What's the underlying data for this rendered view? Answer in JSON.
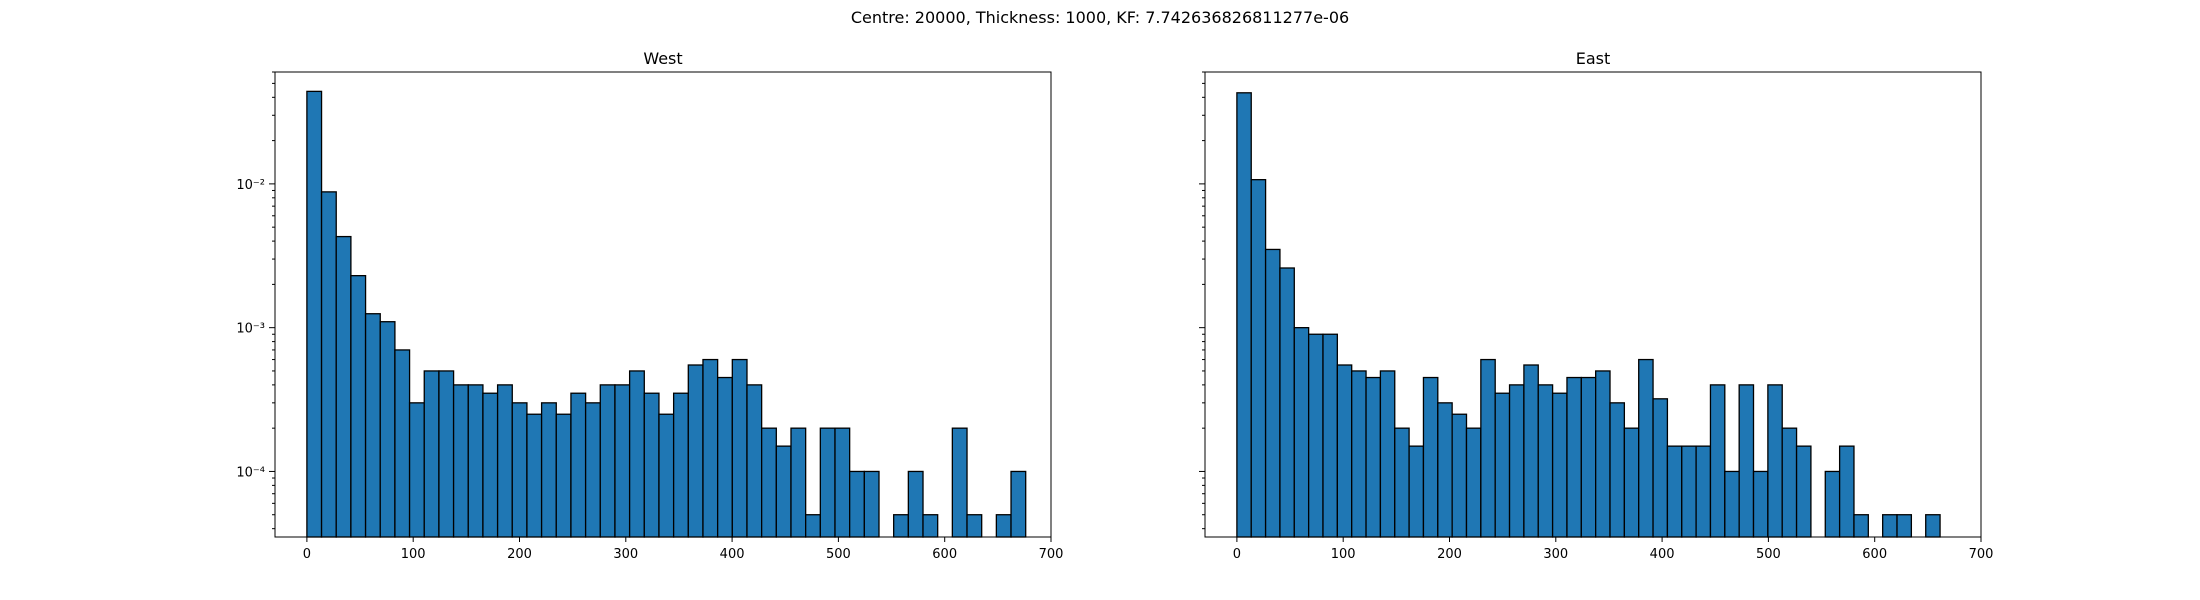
{
  "figure": {
    "suptitle": "Centre: 20000, Thickness: 1000, KF: 7.742636826811277e-06"
  },
  "chart_data": [
    {
      "type": "bar",
      "subtype": "histogram",
      "title": "West",
      "xlabel": "",
      "ylabel": "",
      "y_scale": "log",
      "xlim": [
        -30,
        700
      ],
      "ylim": [
        3.5e-05,
        0.06
      ],
      "bin_width": 13.8,
      "bin_start": 0,
      "x_ticks": [
        0,
        100,
        200,
        300,
        400,
        500,
        600,
        700
      ],
      "x_tick_labels": [
        "0",
        "100",
        "200",
        "300",
        "400",
        "500",
        "600",
        "700"
      ],
      "y_ticks": [
        0.01,
        0.001,
        0.0001
      ],
      "y_tick_labels": [
        "10⁻²",
        "10⁻³",
        "10⁻⁴"
      ],
      "values": [
        0.044,
        0.0088,
        0.0043,
        0.0023,
        0.00125,
        0.0011,
        0.0007,
        0.0003,
        0.0005,
        0.0005,
        0.0004,
        0.0004,
        0.00035,
        0.0004,
        0.0003,
        0.00025,
        0.0003,
        0.00025,
        0.00035,
        0.0003,
        0.0004,
        0.0004,
        0.0005,
        0.00035,
        0.00025,
        0.00035,
        0.00055,
        0.0006,
        0.00045,
        0.0006,
        0.0004,
        0.0002,
        0.00015,
        0.0002,
        5e-05,
        0.0002,
        0.0002,
        0.0001,
        0.0001,
        0,
        5e-05,
        0.0001,
        5e-05,
        0,
        0.0002,
        5e-05,
        0,
        5e-05,
        0.0001
      ]
    },
    {
      "type": "bar",
      "subtype": "histogram",
      "title": "East",
      "xlabel": "",
      "ylabel": "",
      "y_scale": "log",
      "xlim": [
        -30,
        700
      ],
      "ylim": [
        3.5e-05,
        0.06
      ],
      "bin_width": 13.5,
      "bin_start": 0,
      "x_ticks": [
        0,
        100,
        200,
        300,
        400,
        500,
        600,
        700
      ],
      "x_tick_labels": [
        "0",
        "100",
        "200",
        "300",
        "400",
        "500",
        "600",
        "700"
      ],
      "y_ticks": [
        0.01,
        0.001,
        0.0001
      ],
      "y_tick_labels": [
        "",
        "",
        ""
      ],
      "values": [
        0.043,
        0.0107,
        0.0035,
        0.0026,
        0.001,
        0.0009,
        0.0009,
        0.00055,
        0.0005,
        0.00045,
        0.0005,
        0.0002,
        0.00015,
        0.00045,
        0.0003,
        0.00025,
        0.0002,
        0.0006,
        0.00035,
        0.0004,
        0.00055,
        0.0004,
        0.00035,
        0.00045,
        0.00045,
        0.0005,
        0.0003,
        0.0002,
        0.0006,
        0.00032,
        0.00015,
        0.00015,
        0.00015,
        0.0004,
        0.0001,
        0.0004,
        0.0001,
        0.0004,
        0.0002,
        0.00015,
        0,
        0.0001,
        0.00015,
        5e-05,
        0,
        5e-05,
        5e-05,
        0,
        5e-05
      ]
    }
  ]
}
